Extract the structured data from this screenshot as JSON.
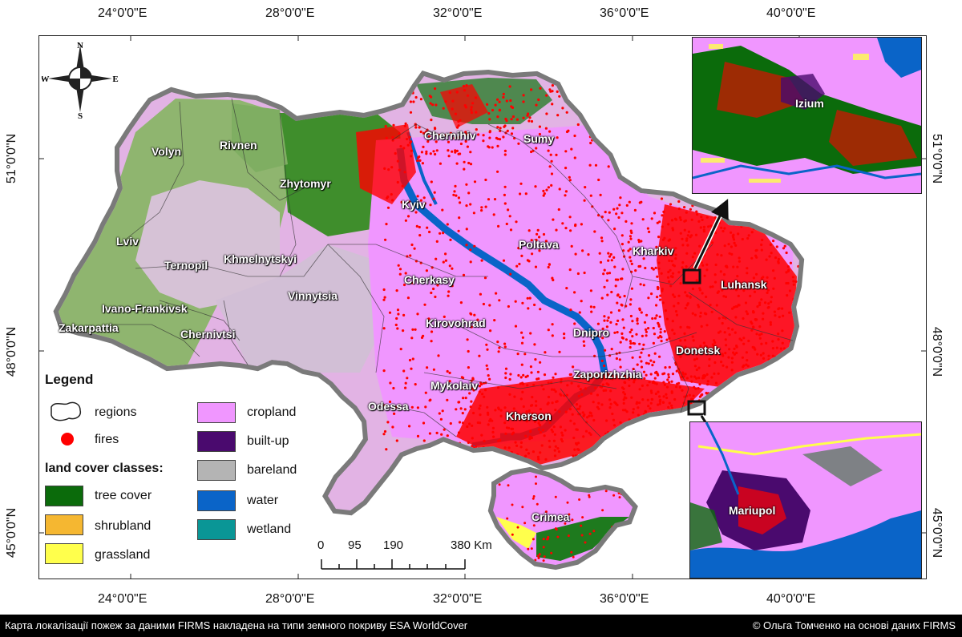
{
  "colors": {
    "tree_cover": "#0b6b0b",
    "shrubland": "#f5b731",
    "grassland": "#ffff4c",
    "cropland": "#f096ff",
    "built_up": "#4a0a6e",
    "bareland": "#b4b4b4",
    "water": "#0a64c8",
    "wetland": "#0a9696",
    "fires": "#ff0000",
    "frame_border": "#222222",
    "footer_bg": "#000000"
  },
  "graticule": {
    "top_lon_labels": [
      "24°0'0\"E",
      "28°0'0\"E",
      "32°0'0\"E",
      "36°0'0\"E",
      "40°0'0\"E"
    ],
    "bottom_lon_labels": [
      "24°0'0\"E",
      "28°0'0\"E",
      "32°0'0\"E",
      "36°0'0\"E",
      "40°0'0\"E"
    ],
    "left_lat_labels": [
      "51°0'0\"N",
      "48°0'0\"N",
      "45°0'0\"N"
    ],
    "right_lat_labels": [
      "51°0'0\"N",
      "48°0'0\"N",
      "45°0'0\"N"
    ]
  },
  "compass": {
    "n": "N",
    "s": "S",
    "e": "E",
    "w": "W"
  },
  "regions": {
    "volyn": "Volyn",
    "rivnen": "Rivnen",
    "zhytomyr": "Zhytomyr",
    "chernihiv": "Chernihiv",
    "sumy": "Sumy",
    "kyiv": "Kyiv",
    "lviv": "Lviv",
    "ternopil": "Ternopil",
    "khmelnytskyi": "Khmelnytskyi",
    "poltava": "Poltava",
    "kharkiv": "Kharkiv",
    "cherkasy": "Cherkasy",
    "luhansk": "Luhansk",
    "vinnytsia": "Vinnytsia",
    "ivano_frankivsk": "Ivano-Frankivsk",
    "zakarpattia": "Zakarpattia",
    "chernivtsi": "Chernivtsi",
    "kirovohrad": "Kirovohrad",
    "dnipro": "Dnipro",
    "donetsk": "Donetsk",
    "zaporizhzhia": "Zaporizhzhia",
    "mykolaiv": "Mykolaiv",
    "odessa": "Odessa",
    "kherson": "Kherson",
    "crimea": "Crimea"
  },
  "insets": {
    "top_city": "Izium",
    "bottom_city": "Mariupol"
  },
  "legend": {
    "title": "Legend",
    "regions": "regions",
    "fires": "fires",
    "land_cover_heading": "land cover classes:",
    "tree_cover": "tree cover",
    "shrubland": "shrubland",
    "grassland": "grassland",
    "cropland": "cropland",
    "built_up": "built-up",
    "bareland": "bareland",
    "water": "water",
    "wetland": "wetland"
  },
  "scale_bar": {
    "labels": [
      "0",
      "95",
      "190",
      "380 Km"
    ]
  },
  "footer": {
    "left": "Карта локалізації пожеж за даними FIRMS накладена на типи земного покриву ESA WorldCover",
    "right": "© Ольга Томченко на основі даних FIRMS"
  }
}
